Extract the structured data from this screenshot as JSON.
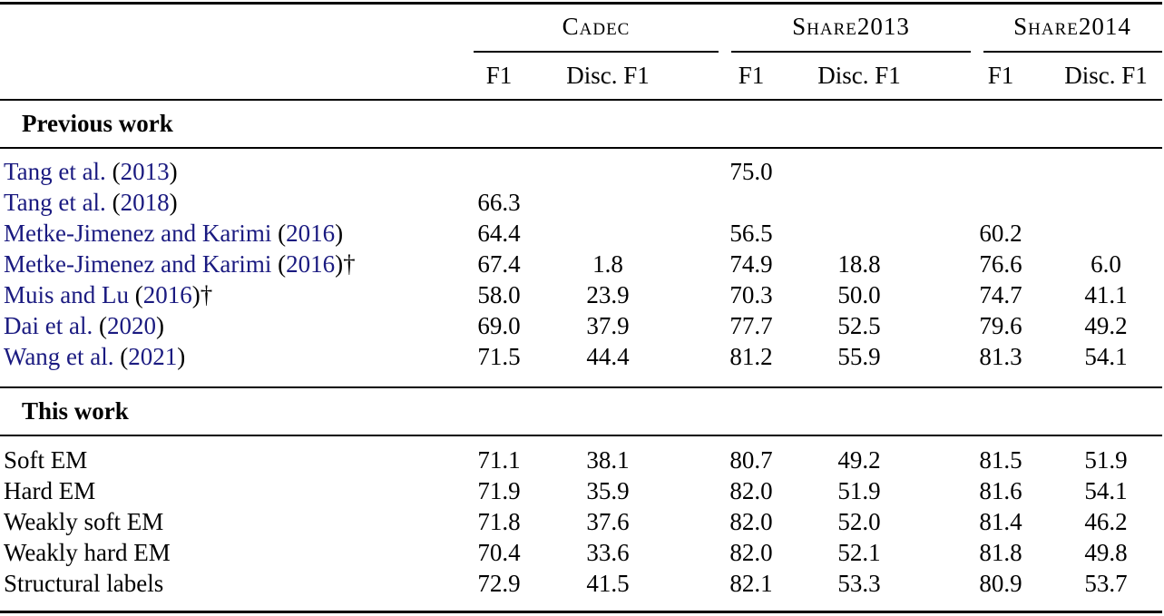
{
  "table": {
    "header": {
      "groups": [
        "Cadec",
        "Share2013",
        "Share2014"
      ],
      "subcols": [
        "F1",
        "Disc. F1",
        "F1",
        "Disc. F1",
        "F1",
        "Disc. F1"
      ]
    },
    "previous_work": {
      "title": "Previous work",
      "rows": [
        {
          "author": "Tang et al.",
          "open": " (",
          "year": "2013",
          "close": ")",
          "dagger": "",
          "values": [
            "",
            "",
            "75.0",
            "",
            "",
            ""
          ]
        },
        {
          "author": "Tang et al.",
          "open": " (",
          "year": "2018",
          "close": ")",
          "dagger": "",
          "values": [
            "66.3",
            "",
            "",
            "",
            "",
            ""
          ]
        },
        {
          "author": "Metke-Jimenez and Karimi",
          "open": " (",
          "year": "2016",
          "close": ")",
          "dagger": "",
          "values": [
            "64.4",
            "",
            "56.5",
            "",
            "60.2",
            ""
          ]
        },
        {
          "author": "Metke-Jimenez and Karimi",
          "open": " (",
          "year": "2016",
          "close": ")",
          "dagger": "†",
          "values": [
            "67.4",
            "1.8",
            "74.9",
            "18.8",
            "76.6",
            "6.0"
          ]
        },
        {
          "author": "Muis and Lu",
          "open": " (",
          "year": "2016",
          "close": ")",
          "dagger": "†",
          "values": [
            "58.0",
            "23.9",
            "70.3",
            "50.0",
            "74.7",
            "41.1"
          ]
        },
        {
          "author": "Dai et al.",
          "open": " (",
          "year": "2020",
          "close": ")",
          "dagger": "",
          "values": [
            "69.0",
            "37.9",
            "77.7",
            "52.5",
            "79.6",
            "49.2"
          ]
        },
        {
          "author": "Wang et al.",
          "open": " (",
          "year": "2021",
          "close": ")",
          "dagger": "",
          "values": [
            "71.5",
            "44.4",
            "81.2",
            "55.9",
            "81.3",
            "54.1"
          ]
        }
      ]
    },
    "this_work": {
      "title": "This work",
      "rows": [
        {
          "method": "Soft EM",
          "values": [
            "71.1",
            "38.1",
            "80.7",
            "49.2",
            "81.5",
            "51.9"
          ]
        },
        {
          "method": "Hard EM",
          "values": [
            "71.9",
            "35.9",
            "82.0",
            "51.9",
            "81.6",
            "54.1"
          ]
        },
        {
          "method": "Weakly soft EM",
          "values": [
            "71.8",
            "37.6",
            "82.0",
            "52.0",
            "81.4",
            "46.2"
          ]
        },
        {
          "method": "Weakly hard EM",
          "values": [
            "70.4",
            "33.6",
            "82.0",
            "52.1",
            "81.8",
            "49.8"
          ]
        },
        {
          "method": "Structural labels",
          "values": [
            "72.9",
            "41.5",
            "82.1",
            "53.3",
            "80.9",
            "53.7"
          ]
        }
      ]
    }
  },
  "colors": {
    "citation": "#1a1a80",
    "text": "#000000",
    "rule": "#000000"
  }
}
